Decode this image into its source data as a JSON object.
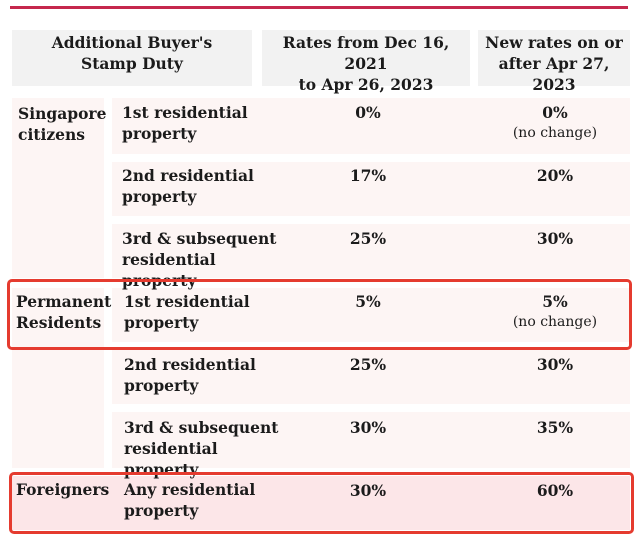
{
  "header": {
    "col1": [
      "Additional Buyer's",
      "Stamp Duty"
    ],
    "col2": [
      "Rates from Dec 16, 2021",
      "to Apr 26, 2023"
    ],
    "col3": [
      "New rates on or",
      "after Apr 27, 2023"
    ]
  },
  "groups": [
    {
      "category": [
        "Singapore",
        "citizens"
      ],
      "rows": [
        {
          "property": [
            "1st residential",
            "property"
          ],
          "old": "0%",
          "new": "0%",
          "note": "(no change)"
        },
        {
          "property": [
            "2nd residential",
            "property"
          ],
          "old": "17%",
          "new": "20%",
          "note": ""
        },
        {
          "property": [
            "3rd & subsequent",
            "residential property"
          ],
          "old": "25%",
          "new": "30%",
          "note": ""
        }
      ]
    },
    {
      "category": [
        "Permanent",
        "Residents"
      ],
      "rows": [
        {
          "property": [
            "1st residential",
            "property"
          ],
          "old": "5%",
          "new": "5%",
          "note": "(no change)"
        },
        {
          "property": [
            "2nd residential",
            "property"
          ],
          "old": "25%",
          "new": "30%",
          "note": ""
        },
        {
          "property": [
            "3rd & subsequent",
            "residential property"
          ],
          "old": "30%",
          "new": "35%",
          "note": ""
        }
      ]
    },
    {
      "category": [
        "Foreigners"
      ],
      "rows": [
        {
          "property": [
            "Any residential",
            "property"
          ],
          "old": "30%",
          "new": "60%",
          "note": ""
        }
      ]
    }
  ],
  "colors": {
    "accent_line": "#c5284d",
    "highlight_border": "#e53b2f",
    "foreigners_background": "#fce6e8",
    "row_background": "#fdf5f4",
    "header_background": "#f2f2f2"
  }
}
